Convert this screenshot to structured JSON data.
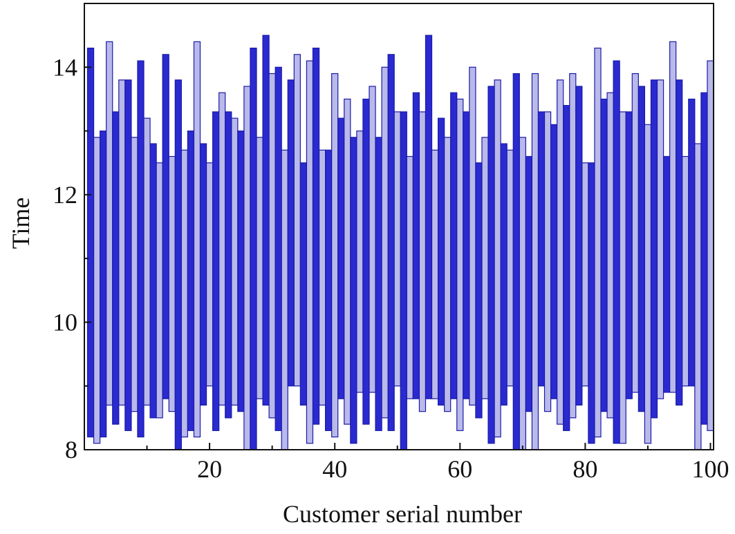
{
  "chart_data": {
    "type": "rangebar",
    "x_label": "Customer serial number",
    "y_label": "Time",
    "x": [
      1,
      2,
      3,
      4,
      5,
      6,
      7,
      8,
      9,
      10,
      11,
      12,
      13,
      14,
      15,
      16,
      17,
      18,
      19,
      20,
      21,
      22,
      23,
      24,
      25,
      26,
      27,
      28,
      29,
      30,
      31,
      32,
      33,
      34,
      35,
      36,
      37,
      38,
      39,
      40,
      41,
      42,
      43,
      44,
      45,
      46,
      47,
      48,
      49,
      50,
      51,
      52,
      53,
      54,
      55,
      56,
      57,
      58,
      59,
      60,
      61,
      62,
      63,
      64,
      65,
      66,
      67,
      68,
      69,
      70,
      71,
      72,
      73,
      74,
      75,
      76,
      77,
      78,
      79,
      80,
      81,
      82,
      83,
      84,
      85,
      86,
      87,
      88,
      89,
      90,
      91,
      92,
      93,
      94,
      95,
      96,
      97,
      98,
      99,
      100
    ],
    "high": [
      14.3,
      12.9,
      13.0,
      14.4,
      13.3,
      13.8,
      13.8,
      12.9,
      14.1,
      13.2,
      12.8,
      12.5,
      14.2,
      12.6,
      13.8,
      12.7,
      13.0,
      14.4,
      12.8,
      12.5,
      13.3,
      13.6,
      13.3,
      13.2,
      13.0,
      13.7,
      14.3,
      12.9,
      14.5,
      13.9,
      14.0,
      12.7,
      13.8,
      14.2,
      12.5,
      14.1,
      14.3,
      12.7,
      12.7,
      13.9,
      13.2,
      13.5,
      12.9,
      13.0,
      13.5,
      13.7,
      12.9,
      14.0,
      14.2,
      13.3,
      13.3,
      12.6,
      13.6,
      13.3,
      14.5,
      12.7,
      13.2,
      12.9,
      13.6,
      13.5,
      13.3,
      14.0,
      12.5,
      12.9,
      13.7,
      13.8,
      12.8,
      12.7,
      13.9,
      12.9,
      12.6,
      13.9,
      13.3,
      13.3,
      13.1,
      13.8,
      13.4,
      13.9,
      13.7,
      12.5,
      12.5,
      14.3,
      13.5,
      13.6,
      14.1,
      13.3,
      13.3,
      13.9,
      13.7,
      13.1,
      13.8,
      13.8,
      12.6,
      14.4,
      13.8,
      12.6,
      13.5,
      12.8,
      13.6,
      14.1
    ],
    "low": [
      8.2,
      8.1,
      8.2,
      8.7,
      8.4,
      8.7,
      8.3,
      8.6,
      8.2,
      8.7,
      8.5,
      8.5,
      8.8,
      8.6,
      8.0,
      8.2,
      8.3,
      8.2,
      8.7,
      9.0,
      8.3,
      8.7,
      8.5,
      8.7,
      8.6,
      8.0,
      8.0,
      8.8,
      8.7,
      8.5,
      8.3,
      8.0,
      9.0,
      9.0,
      8.7,
      8.1,
      8.4,
      8.7,
      8.3,
      8.2,
      8.8,
      8.4,
      8.1,
      8.9,
      8.4,
      8.9,
      8.3,
      8.5,
      8.3,
      9.0,
      8.0,
      8.8,
      8.8,
      8.6,
      8.8,
      8.8,
      8.7,
      8.6,
      8.8,
      8.3,
      8.8,
      8.7,
      8.5,
      8.8,
      8.1,
      8.2,
      8.7,
      9.0,
      8.0,
      8.0,
      8.6,
      8.0,
      9.0,
      8.6,
      8.8,
      8.4,
      8.3,
      8.5,
      8.7,
      9.0,
      8.1,
      8.2,
      8.6,
      8.5,
      8.1,
      8.1,
      8.8,
      8.9,
      8.6,
      8.1,
      8.5,
      8.8,
      8.9,
      8.9,
      8.7,
      9.0,
      9.0,
      8.0,
      8.4,
      8.3
    ],
    "colors": [
      "#2a2ad0",
      "#b9b9ea"
    ],
    "edge_color": "#1a1aa8",
    "xlim": [
      0,
      100.5
    ],
    "ylim": [
      8,
      15
    ],
    "xticks": [
      20,
      40,
      60,
      80,
      100
    ],
    "yticks": [
      8,
      10,
      12,
      14
    ],
    "xminorticks": [
      10,
      30,
      50,
      70,
      90
    ],
    "yminorticks": [
      9,
      11,
      13
    ]
  }
}
